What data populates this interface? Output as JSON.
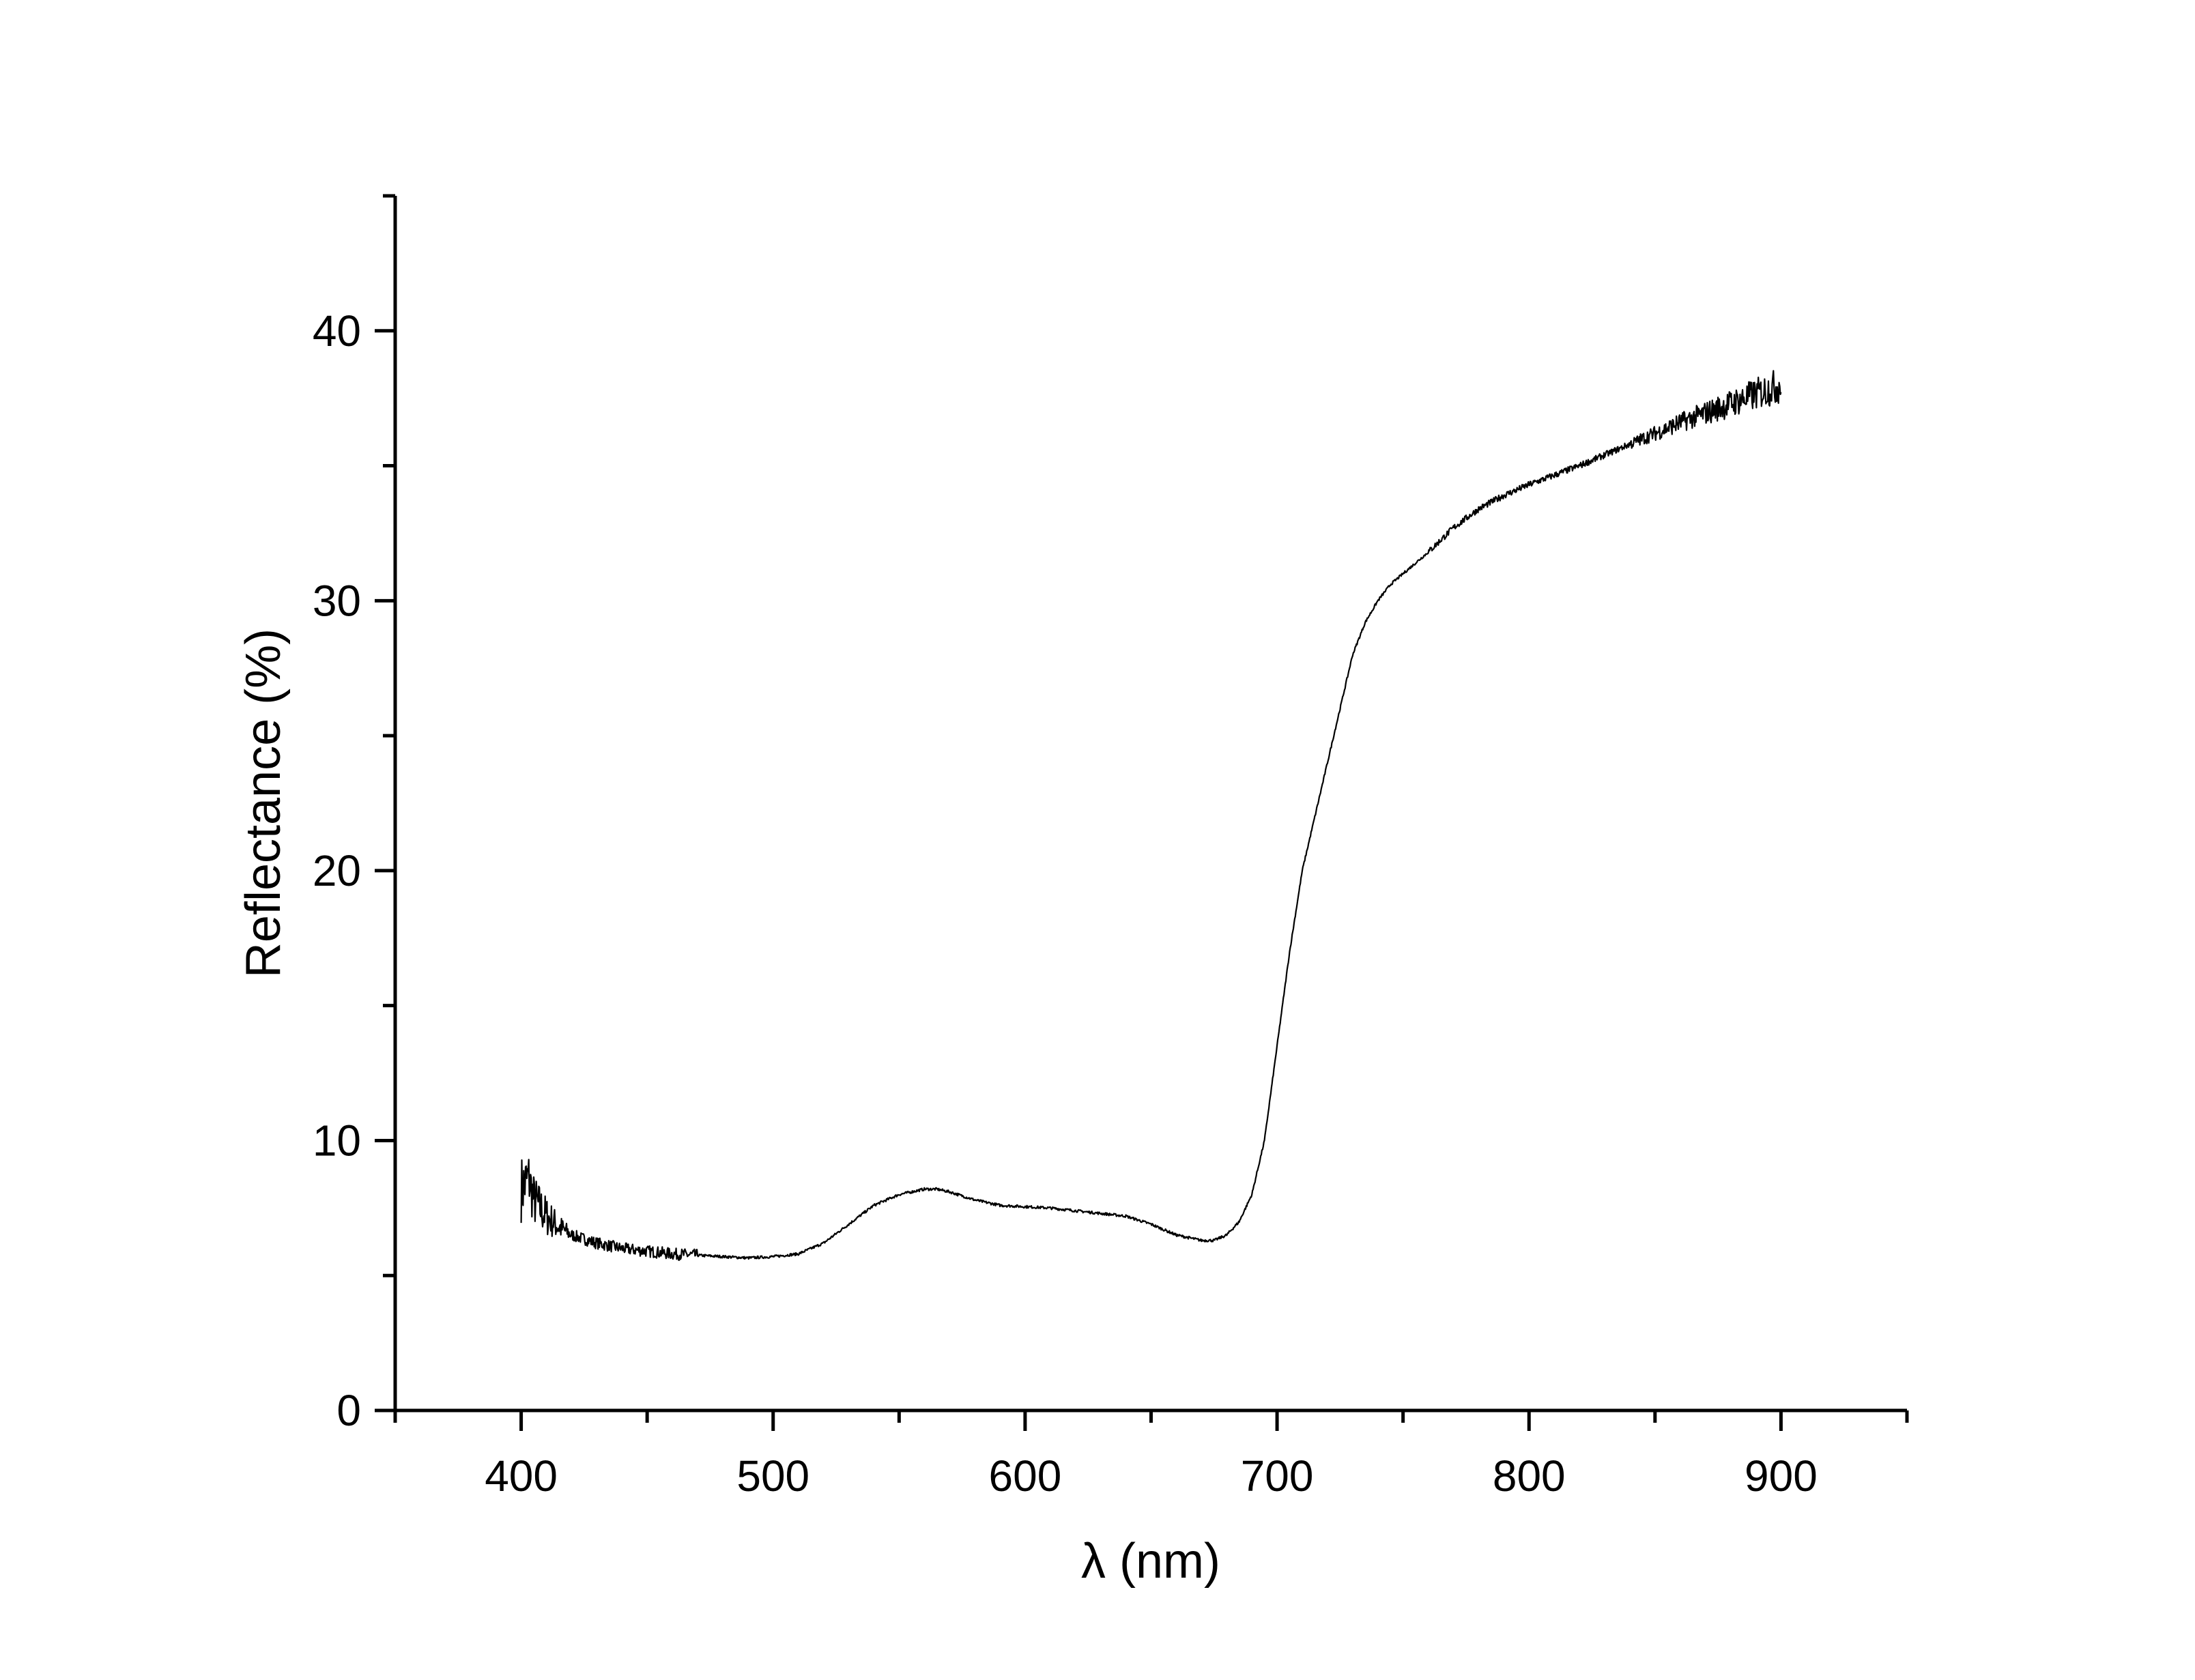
{
  "chart_data": {
    "type": "line",
    "title": "",
    "xlabel": "λ (nm)",
    "ylabel": "Reflectance (%)",
    "xlim": [
      350,
      950
    ],
    "ylim": [
      0,
      45
    ],
    "x_ticks": [
      400,
      500,
      600,
      700,
      800,
      900
    ],
    "x_tick_labels": [
      "400",
      "500",
      "600",
      "700",
      "800",
      "900"
    ],
    "y_ticks": [
      0,
      10,
      20,
      30,
      40
    ],
    "y_tick_labels": [
      "0",
      "10",
      "20",
      "30",
      "40"
    ],
    "grid": false,
    "legend": "none",
    "colors": {
      "line": "#000000",
      "axis": "#000000",
      "background": "#ffffff"
    },
    "series": [
      {
        "x": [
          400,
          403,
          405,
          410,
          415,
          420,
          430,
          440,
          450,
          460,
          470,
          480,
          490,
          500,
          510,
          520,
          530,
          540,
          550,
          560,
          565,
          570,
          580,
          590,
          600,
          610,
          620,
          630,
          640,
          650,
          660,
          670,
          675,
          680,
          685,
          690,
          695,
          700,
          705,
          710,
          715,
          720,
          725,
          730,
          735,
          740,
          745,
          750,
          760,
          770,
          780,
          790,
          800,
          820,
          840,
          860,
          880,
          900
        ],
        "y": [
          8.2,
          8.6,
          7.8,
          7.2,
          6.8,
          6.5,
          6.2,
          6.0,
          5.9,
          5.8,
          5.75,
          5.7,
          5.65,
          5.7,
          5.8,
          6.2,
          6.9,
          7.6,
          8.0,
          8.2,
          8.2,
          8.1,
          7.8,
          7.6,
          7.55,
          7.5,
          7.4,
          7.3,
          7.2,
          6.9,
          6.5,
          6.3,
          6.3,
          6.5,
          7.0,
          8.0,
          10.0,
          13.5,
          17.0,
          20.0,
          22.0,
          24.0,
          26.0,
          28.0,
          29.2,
          30.0,
          30.6,
          31.0,
          31.8,
          32.7,
          33.4,
          33.9,
          34.3,
          35.0,
          35.8,
          36.6,
          37.3,
          38.0
        ]
      }
    ]
  }
}
